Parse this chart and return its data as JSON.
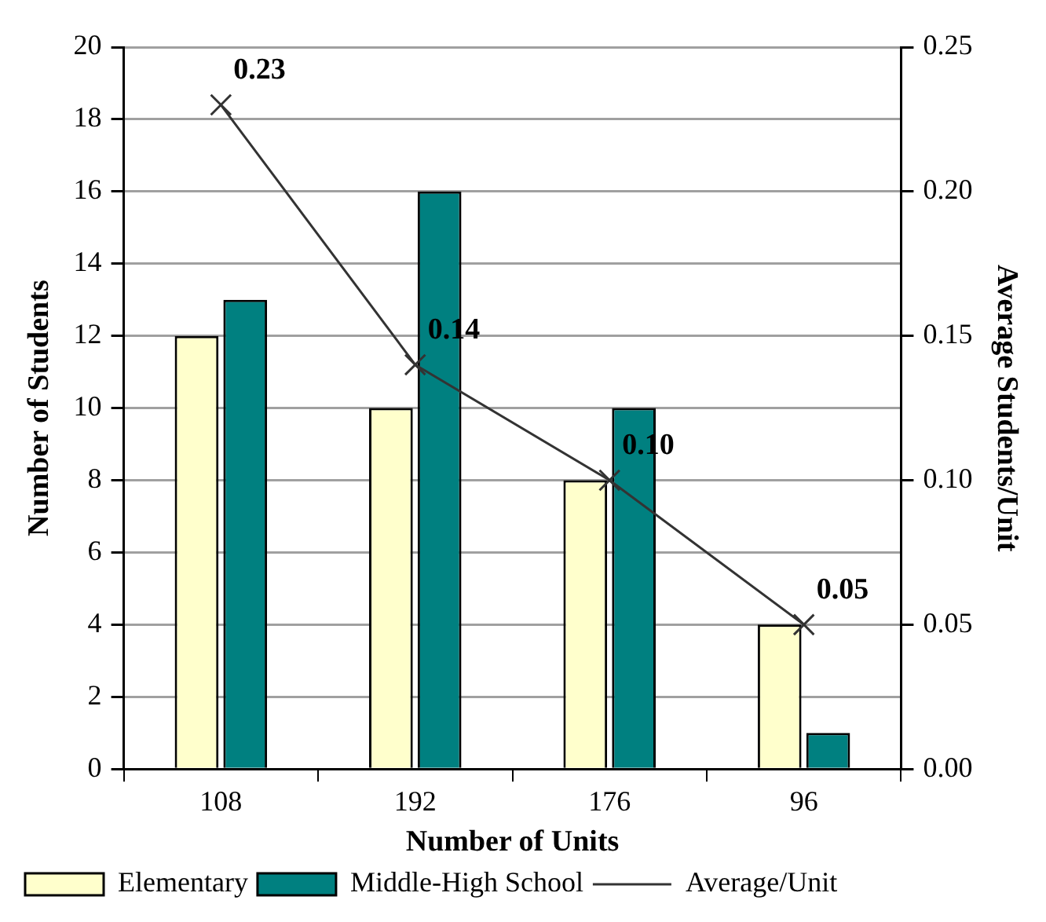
{
  "chart_data": {
    "type": "bar",
    "categories": [
      "108",
      "192",
      "176",
      "96"
    ],
    "xlabel": "Number of Units",
    "ylabel": "Number of Students",
    "y2label": "Average Students/Unit",
    "series": [
      {
        "name": "Elementary",
        "color": "#ffffcc",
        "values": [
          12,
          10,
          8,
          4
        ]
      },
      {
        "name": "Middle-High School",
        "color": "#008080",
        "values": [
          13,
          16,
          10,
          1
        ]
      },
      {
        "name": "Average/Unit",
        "type": "line",
        "axis": "y2",
        "color": "#333333",
        "marker": "cross",
        "values": [
          0.23,
          0.14,
          0.1,
          0.05
        ],
        "value_labels": [
          "0.23",
          "0.14",
          "0.10",
          "0.05"
        ]
      }
    ],
    "ylim": [
      0,
      20
    ],
    "yticks": [
      0,
      2,
      4,
      6,
      8,
      10,
      12,
      14,
      16,
      18,
      20
    ],
    "y2lim": [
      0,
      0.25
    ],
    "y2ticks": [
      {
        "value": 0,
        "label": "0.00"
      },
      {
        "value": 0.05,
        "label": "0.05"
      },
      {
        "value": 0.1,
        "label": "0.10"
      },
      {
        "value": 0.15,
        "label": "0.15"
      },
      {
        "value": 0.2,
        "label": "0.20"
      },
      {
        "value": 0.25,
        "label": "0.25"
      }
    ],
    "grid": "y",
    "legend": "bottom"
  }
}
